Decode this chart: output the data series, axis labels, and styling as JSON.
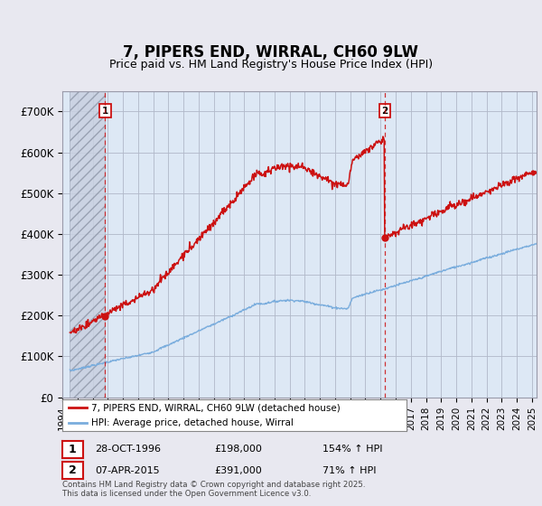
{
  "title": "7, PIPERS END, WIRRAL, CH60 9LW",
  "subtitle": "Price paid vs. HM Land Registry's House Price Index (HPI)",
  "xlim_start": 1994.5,
  "xlim_end": 2025.3,
  "ylim_min": 0,
  "ylim_max": 750000,
  "yticks": [
    0,
    100000,
    200000,
    300000,
    400000,
    500000,
    600000,
    700000
  ],
  "ytick_labels": [
    "£0",
    "£100K",
    "£200K",
    "£300K",
    "£400K",
    "£500K",
    "£600K",
    "£700K"
  ],
  "bg_color": "#e8e8f0",
  "plot_bg": "#dde8f5",
  "grid_color": "#b0b8c8",
  "hpi_color": "#7aaddd",
  "price_color": "#cc1111",
  "marker1_x": 1996.83,
  "marker1_y": 198000,
  "marker2_x": 2015.27,
  "marker2_y": 391000,
  "hatch_end": 1996.83,
  "legend_label1": "7, PIPERS END, WIRRAL, CH60 9LW (detached house)",
  "legend_label2": "HPI: Average price, detached house, Wirral",
  "ann1_date": "28-OCT-1996",
  "ann1_price": "£198,000",
  "ann1_hpi": "154% ↑ HPI",
  "ann2_date": "07-APR-2015",
  "ann2_price": "£391,000",
  "ann2_hpi": "71% ↑ HPI",
  "copyright": "Contains HM Land Registry data © Crown copyright and database right 2025.\nThis data is licensed under the Open Government Licence v3.0."
}
